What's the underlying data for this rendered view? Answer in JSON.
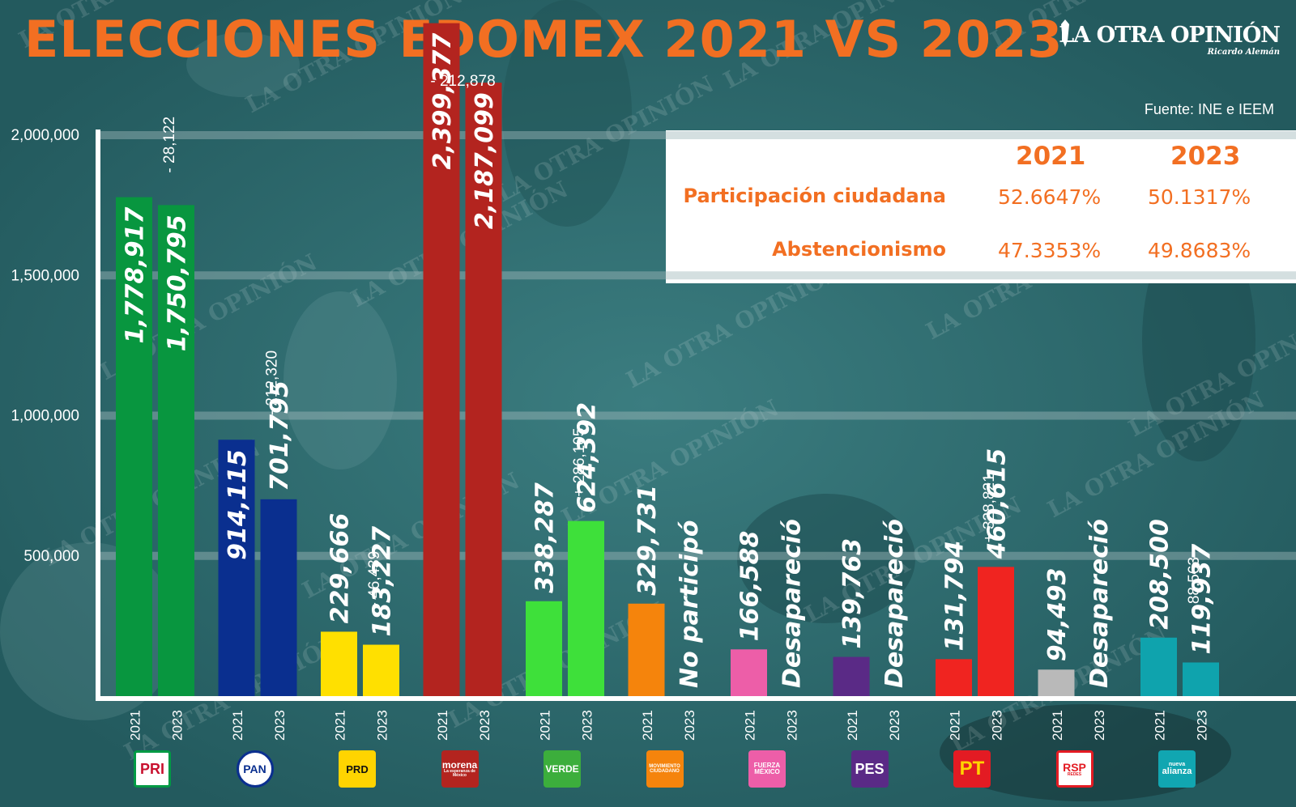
{
  "title": "ELECCIONES EDOMEX 2021 VS 2023",
  "brand": {
    "name": "LA OTRA OPINIÓN",
    "subtitle": "Ricardo Alemán",
    "watermark": "LA OTRA OPINIÓN"
  },
  "source": "Fuente: INE e IEEM",
  "stats": {
    "years": [
      "2021",
      "2023"
    ],
    "rows": [
      {
        "label": "Participación ciudadana",
        "values": [
          "52.6647%",
          "50.1317%"
        ]
      },
      {
        "label": "Abstencionismo",
        "values": [
          "47.3353%",
          "49.8683%"
        ]
      }
    ]
  },
  "chart_data": {
    "type": "bar",
    "title": "ELECCIONES EDOMEX 2021 VS 2023",
    "xlabel": "",
    "ylabel": "",
    "ylim": [
      0,
      2000000
    ],
    "y_ticks": [
      "2,000,000",
      "1,500,000",
      "1,000,000",
      "500,000"
    ],
    "y_tick_values": [
      2000000,
      1500000,
      1000000,
      500000
    ],
    "grid": true,
    "series_years": [
      "2021",
      "2023"
    ],
    "categories": [
      "PRI",
      "PAN",
      "PRD",
      "morena",
      "VERDE",
      "MOVIMIENTO CIUDADANO",
      "FUERZA MÉXICO",
      "PES",
      "PT",
      "RSP",
      "nueva alianza"
    ],
    "parties": [
      {
        "logo": "PRI",
        "color": "#08963f",
        "v2021": 1778917,
        "v2023": 1750795,
        "l2021": "1,778,917",
        "l2023": "1,750,795",
        "diff": "- 28,122"
      },
      {
        "logo": "PAN",
        "color": "#0a2f8f",
        "v2021": 914115,
        "v2023": 701795,
        "l2021": "914,115",
        "l2023": "701,795",
        "diff": "- 212,320"
      },
      {
        "logo": "PRD",
        "color": "#ffe000",
        "v2021": 229666,
        "v2023": 183227,
        "l2021": "229,666",
        "l2023": "183,227",
        "diff": "- 46,439"
      },
      {
        "logo": "morena",
        "logo_sub": "La esperanza de México",
        "color": "#b3241f",
        "v2021": 2399377,
        "v2023": 2187099,
        "l2021": "2,399,377",
        "l2023": "2,187,099",
        "diff": "- 212,878"
      },
      {
        "logo": "VERDE",
        "color": "#3ee03a",
        "v2021": 338287,
        "v2023": 624392,
        "l2021": "338,287",
        "l2023": "624,392",
        "diff": "+ 286,105"
      },
      {
        "logo": "MOVIMIENTO CIUDADANO",
        "color": "#f5840c",
        "v2021": 329731,
        "v2023": null,
        "l2021": "329,731",
        "l2023": "No participó",
        "diff": ""
      },
      {
        "logo": "FUERZA MÉXICO",
        "color": "#ed5ea8",
        "v2021": 166588,
        "v2023": null,
        "l2021": "166,588",
        "l2023": "Desapareció",
        "diff": ""
      },
      {
        "logo": "PES",
        "color": "#5a2a86",
        "v2021": 139763,
        "v2023": null,
        "l2021": "139,763",
        "l2023": "Desapareció",
        "diff": ""
      },
      {
        "logo": "PT",
        "color": "#f02420",
        "v2021": 131794,
        "v2023": 460615,
        "l2021": "131,794",
        "l2023": "460,615",
        "diff": "+ 328,821"
      },
      {
        "logo": "RSP",
        "logo_sub": "REDES",
        "color": "#b9b9b9",
        "v2021": 94493,
        "v2023": null,
        "l2021": "94,493",
        "l2023": "Desapareció",
        "diff": ""
      },
      {
        "logo": "alianza",
        "logo_sub": "nueva",
        "color": "#0fa3ad",
        "v2021": 208500,
        "v2023": 119937,
        "l2021": "208,500",
        "l2023": "119,937",
        "diff": "- 88,563"
      }
    ]
  }
}
